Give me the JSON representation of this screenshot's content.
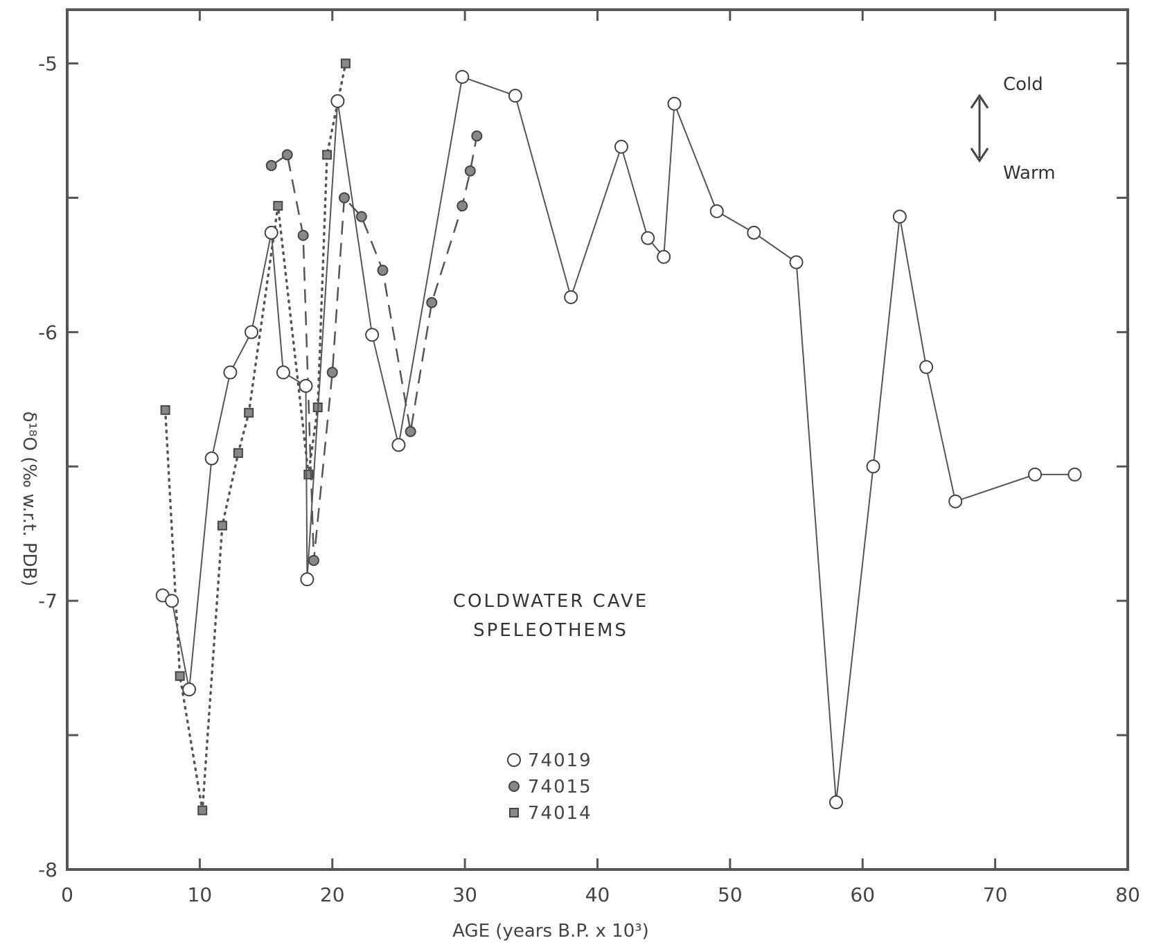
{
  "chart_data": {
    "type": "line",
    "title": "",
    "xlabel": "AGE (years B.P. x 10³)",
    "ylabel": "δ¹⁸O (‰ w.r.t. PDB)",
    "xlim": [
      0,
      80
    ],
    "ylim": [
      -8,
      -4.8
    ],
    "x_ticks": [
      0,
      10,
      20,
      30,
      40,
      50,
      60,
      70,
      80
    ],
    "y_ticks": [
      -8,
      -7,
      -6,
      -5
    ],
    "x_tick_labels": [
      "0",
      "10",
      "20",
      "30",
      "40",
      "50",
      "60",
      "70",
      "80"
    ],
    "y_tick_labels": [
      "-8",
      "-7",
      "-6",
      "-5"
    ],
    "grid": false,
    "legend_placement": "bottom-center",
    "annotation": [
      "COLDWATER CAVE",
      "SPELEOTHEMS"
    ],
    "direction_labels": {
      "up": "Cold",
      "down": "Warm"
    },
    "series": [
      {
        "name": "74019",
        "marker": "open-circle",
        "line": "solid",
        "x": [
          7.2,
          7.9,
          9.2,
          10.9,
          12.3,
          13.9,
          15.4,
          16.3,
          18.0,
          18.1,
          20.4,
          23.0,
          25.0,
          29.8,
          33.8,
          38.0,
          41.8,
          43.8,
          45.0,
          45.8,
          49.0,
          51.8,
          55.0,
          58.0,
          60.8,
          62.8,
          64.8,
          67.0,
          73.0,
          76.0
        ],
        "y": [
          -6.98,
          -7.0,
          -7.33,
          -6.47,
          -6.15,
          -6.0,
          -5.63,
          -6.15,
          -6.2,
          -6.92,
          -5.14,
          -6.01,
          -6.42,
          -5.05,
          -5.12,
          -5.87,
          -5.31,
          -5.65,
          -5.72,
          -5.15,
          -5.55,
          -5.63,
          -5.74,
          -7.75,
          -6.5,
          -5.57,
          -6.13,
          -6.63,
          -6.53,
          -6.53
        ]
      },
      {
        "name": "74015",
        "marker": "filled-circle",
        "line": "dashed",
        "x": [
          15.4,
          16.6,
          17.8,
          18.6,
          20.0,
          20.9,
          22.2,
          23.8,
          25.9,
          27.5,
          29.8,
          30.4,
          30.9
        ],
        "y": [
          -5.38,
          -5.34,
          -5.64,
          -6.85,
          -6.15,
          -5.5,
          -5.57,
          -5.77,
          -6.37,
          -5.89,
          -5.53,
          -5.4,
          -5.27
        ]
      },
      {
        "name": "74014",
        "marker": "filled-square",
        "line": "dotted",
        "x": [
          7.4,
          8.5,
          10.2,
          11.7,
          12.9,
          13.7,
          15.9,
          18.2,
          18.9,
          19.6,
          21.0
        ],
        "y": [
          -6.29,
          -7.28,
          -7.78,
          -6.72,
          -6.45,
          -6.3,
          -5.53,
          -6.53,
          -6.28,
          -5.34,
          -5.0
        ]
      }
    ]
  }
}
